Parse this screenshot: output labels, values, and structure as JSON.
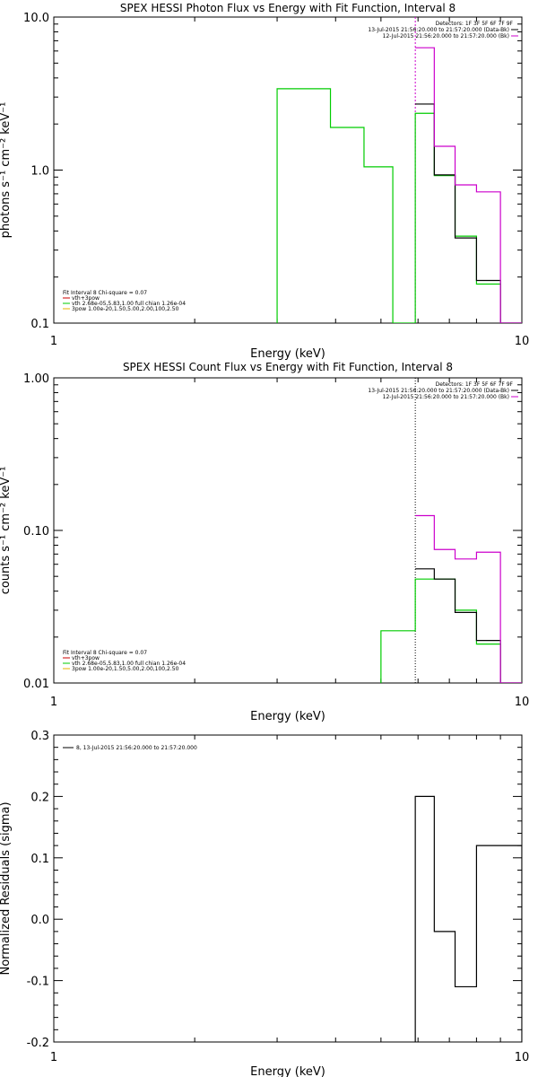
{
  "colors": {
    "black": "#000000",
    "magenta": "#cc00cc",
    "green": "#00cc00",
    "red": "#cc0000",
    "orange": "#e8b000"
  },
  "chart_data": [
    {
      "type": "line",
      "title": "SPEX HESSI Photon Flux vs Energy with Fit Function, Interval 8",
      "xlabel": "Energy (keV)",
      "ylabel": "photons s⁻¹ cm⁻² keV⁻¹",
      "xscale": "log",
      "yscale": "log",
      "xlim": [
        1,
        10
      ],
      "ylim": [
        0.1,
        10
      ],
      "xticks": [
        "1",
        "10"
      ],
      "yticks": [
        "0.1",
        "1.0",
        "10.0"
      ],
      "legend_right": {
        "header": "Detectors: 1F 3F 5F 6F 7F 9F",
        "entries": [
          {
            "label": "13-Jul-2015 21:56:20.000 to 21:57:20.000 (Data-Bk)",
            "color": "black"
          },
          {
            "label": "12-Jul-2015 21:56:20.000 to 21:57:20.000 (Bk)",
            "color": "magenta"
          }
        ]
      },
      "legend_left": {
        "header": "Fit Interval 8   Chi-square = 0.07",
        "entries": [
          {
            "label": "vth+3pow",
            "color": "red"
          },
          {
            "label": "vth 2.68e-05,5.83,1.00  full chian 1.26e-04",
            "color": "green"
          },
          {
            "label": "3pow 1.00e-20,1.50,5.00,2.00,100,2.50",
            "color": "orange"
          }
        ]
      },
      "vline": {
        "x": 5.92,
        "color": "magenta"
      },
      "series": [
        {
          "color": "green",
          "edges": [
            3.0,
            3.9,
            4.6,
            5.3,
            5.92,
            6.5,
            7.2,
            8.0,
            9.0,
            10.0
          ],
          "values": [
            3.4,
            1.9,
            1.05,
            0.0,
            2.35,
            0.92,
            0.37,
            0.18,
            0.1
          ],
          "start_from_bottom": true
        },
        {
          "color": "black",
          "edges": [
            5.92,
            6.5,
            7.2,
            8.0,
            9.0,
            10.0
          ],
          "values": [
            2.7,
            0.93,
            0.36,
            0.19,
            0.1
          ]
        },
        {
          "color": "magenta",
          "edges": [
            5.92,
            6.5,
            7.2,
            8.0,
            9.0,
            10.0
          ],
          "values": [
            6.3,
            1.43,
            0.8,
            0.72,
            0.1
          ]
        }
      ]
    },
    {
      "type": "line",
      "title": "SPEX HESSI Count Flux vs Energy with Fit Function, Interval 8",
      "xlabel": "Energy (keV)",
      "ylabel": "counts s⁻¹ cm⁻² keV⁻¹",
      "xscale": "log",
      "yscale": "log",
      "xlim": [
        1,
        10
      ],
      "ylim": [
        0.01,
        1
      ],
      "xticks": [
        "1",
        "10"
      ],
      "yticks": [
        "0.01",
        "0.10",
        "1.00"
      ],
      "legend_right": {
        "header": "Detectors: 1F 3F 5F 6F 7F 9F",
        "entries": [
          {
            "label": "13-Jul-2015 21:56:20.000 to 21:57:20.000 (Data-Bk)",
            "color": "black"
          },
          {
            "label": "12-Jul-2015 21:56:20.000 to 21:57:20.000 (Bk)",
            "color": "magenta"
          }
        ]
      },
      "legend_left": {
        "header": "Fit Interval 8   Chi-square = 0.07",
        "entries": [
          {
            "label": "vth+3pow",
            "color": "red"
          },
          {
            "label": "vth 2.68e-05,5.83,1.00  full chian 1.26e-04",
            "color": "green"
          },
          {
            "label": "3pow 1.00e-20,1.50,5.00,2.00,100,2.50",
            "color": "orange"
          }
        ]
      },
      "vline": {
        "x": 5.92,
        "color": "black",
        "dotted": true
      },
      "series": [
        {
          "color": "green",
          "edges": [
            5.0,
            5.92,
            6.5,
            7.2,
            8.0,
            9.0,
            10.0
          ],
          "values": [
            0.022,
            0.048,
            0.048,
            0.03,
            0.018,
            0.01
          ],
          "start_from_bottom": true
        },
        {
          "color": "black",
          "edges": [
            5.92,
            6.5,
            7.2,
            8.0,
            9.0,
            10.0
          ],
          "values": [
            0.056,
            0.048,
            0.029,
            0.019,
            0.01
          ]
        },
        {
          "color": "magenta",
          "edges": [
            5.92,
            6.5,
            7.2,
            8.0,
            9.0,
            10.0
          ],
          "values": [
            0.125,
            0.075,
            0.065,
            0.072,
            0.01
          ]
        }
      ]
    },
    {
      "type": "line",
      "title": "",
      "xlabel": "Energy (keV)",
      "ylabel": "Normalized Residuals (sigma)",
      "xscale": "log",
      "yscale": "linear",
      "xlim": [
        1,
        10
      ],
      "ylim": [
        -0.2,
        0.3
      ],
      "xticks": [
        "1",
        "10"
      ],
      "yticks": [
        "-0.2",
        "-0.1",
        "0.0",
        "0.1",
        "0.2",
        "0.3"
      ],
      "legend_left_top": {
        "entries": [
          {
            "label": "8, 13-Jul-2015 21:56:20.000 to 21:57:20.000",
            "color": "black"
          }
        ]
      },
      "series": [
        {
          "color": "black",
          "edges": [
            5.92,
            6.5,
            7.2,
            8.0,
            9.0,
            10.0
          ],
          "values": [
            0.2,
            -0.02,
            -0.11,
            0.12,
            0.12
          ],
          "start_from_bottom": true
        }
      ]
    }
  ]
}
